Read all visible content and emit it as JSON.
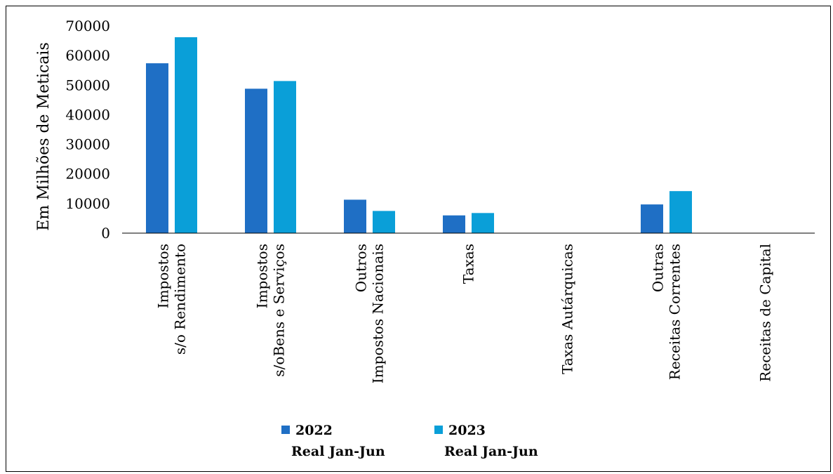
{
  "chart_data": {
    "type": "bar",
    "title": "",
    "xlabel": "",
    "ylabel": "Em Milhões de Meticais",
    "ylim": [
      0,
      70000
    ],
    "yticks": [
      0,
      10000,
      20000,
      30000,
      40000,
      50000,
      60000,
      70000
    ],
    "grid": false,
    "legend_position": "bottom",
    "categories": [
      [
        "Impostos",
        "s/o Rendimento"
      ],
      [
        "Impostos",
        "s/oBens e Serviços"
      ],
      [
        "Outros",
        "Impostos Nacionais"
      ],
      [
        "Taxas"
      ],
      [
        "Taxas Autárquicas"
      ],
      [
        "Outras",
        "Receitas Correntes"
      ],
      [
        "Receitas de Capital"
      ]
    ],
    "series": [
      {
        "name": [
          "2022",
          "Real Jan-Jun"
        ],
        "color": "#1F6FC5",
        "values": [
          57400,
          48800,
          11300,
          6000,
          100,
          9700,
          100
        ]
      },
      {
        "name": [
          "2023",
          "Real Jan-Jun"
        ],
        "color": "#0A9FD8",
        "values": [
          66200,
          51400,
          7500,
          6800,
          100,
          14200,
          100
        ]
      }
    ]
  }
}
